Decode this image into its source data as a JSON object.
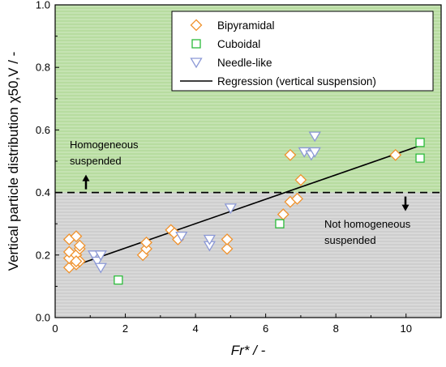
{
  "chart_data": {
    "type": "scatter",
    "title": "",
    "xlabel": "Fr* / -",
    "ylabel": "Vertical particle distribution χ50,V / -",
    "xlim": [
      0,
      11
    ],
    "ylim": [
      0,
      1.0
    ],
    "x_ticks": [
      0,
      2,
      4,
      6,
      8,
      10
    ],
    "y_ticks": [
      0.0,
      0.2,
      0.4,
      0.6,
      0.8,
      1.0
    ],
    "tick_labels": {
      "x": [
        "0",
        "2",
        "4",
        "6",
        "8",
        "10"
      ],
      "y": [
        "0.0",
        "0.2",
        "0.4",
        "0.6",
        "0.8",
        "1.0"
      ]
    },
    "grid": false,
    "legend_position": "top-right",
    "threshold": 0.4,
    "regions": [
      {
        "name": "homogeneous",
        "from": 0.4,
        "to": 1.0,
        "color": "#b7dca0"
      },
      {
        "name": "not-homogeneous",
        "from": 0.0,
        "to": 0.4,
        "color": "#cfcfcf"
      }
    ],
    "series": [
      {
        "name": "Bipyramidal",
        "marker": "diamond",
        "color": "#f0922c",
        "points": [
          [
            0.4,
            0.16
          ],
          [
            0.4,
            0.19
          ],
          [
            0.4,
            0.21
          ],
          [
            0.4,
            0.25
          ],
          [
            0.6,
            0.17
          ],
          [
            0.6,
            0.2
          ],
          [
            0.7,
            0.18
          ],
          [
            0.7,
            0.22
          ],
          [
            0.6,
            0.26
          ],
          [
            0.7,
            0.23
          ],
          [
            0.6,
            0.18
          ],
          [
            2.5,
            0.2
          ],
          [
            2.6,
            0.22
          ],
          [
            2.6,
            0.24
          ],
          [
            3.3,
            0.28
          ],
          [
            3.4,
            0.27
          ],
          [
            3.5,
            0.25
          ],
          [
            4.9,
            0.22
          ],
          [
            4.9,
            0.25
          ],
          [
            6.5,
            0.33
          ],
          [
            6.7,
            0.37
          ],
          [
            6.9,
            0.38
          ],
          [
            7.0,
            0.44
          ],
          [
            6.7,
            0.52
          ],
          [
            9.7,
            0.52
          ]
        ]
      },
      {
        "name": "Cuboidal",
        "marker": "square",
        "color": "#2bbb3a",
        "points": [
          [
            1.8,
            0.12
          ],
          [
            6.4,
            0.3
          ],
          [
            10.4,
            0.51
          ],
          [
            10.4,
            0.56
          ]
        ]
      },
      {
        "name": "Needle-like",
        "marker": "triangle-down",
        "color": "#8c99d6",
        "points": [
          [
            1.1,
            0.2
          ],
          [
            1.2,
            0.18
          ],
          [
            1.3,
            0.16
          ],
          [
            1.3,
            0.2
          ],
          [
            3.6,
            0.26
          ],
          [
            4.4,
            0.23
          ],
          [
            4.4,
            0.25
          ],
          [
            5.0,
            0.35
          ],
          [
            7.1,
            0.53
          ],
          [
            7.3,
            0.52
          ],
          [
            7.4,
            0.53
          ],
          [
            7.4,
            0.58
          ]
        ]
      },
      {
        "name": "Regression (vertical suspension)",
        "marker": "line",
        "color": "#000000",
        "points": [
          [
            0.4,
            0.16
          ],
          [
            10.4,
            0.55
          ]
        ]
      }
    ],
    "annotations": [
      {
        "lines": [
          "Homogeneous",
          "suspended"
        ],
        "direction": "up"
      },
      {
        "lines": [
          "Not homogeneous",
          "suspended"
        ],
        "direction": "down"
      }
    ]
  }
}
